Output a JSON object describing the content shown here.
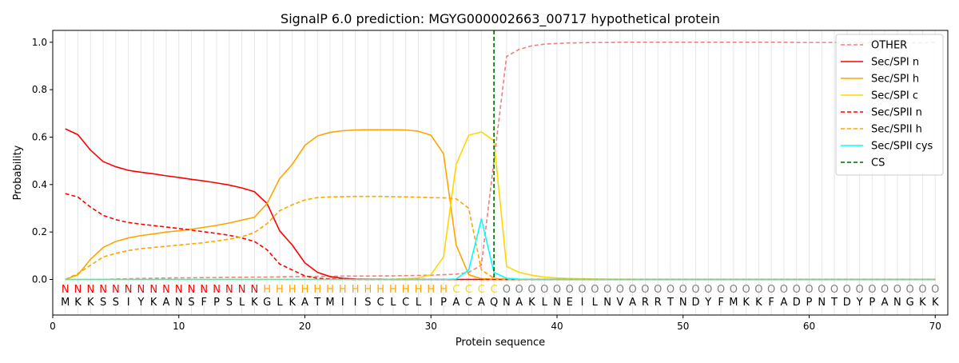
{
  "chart_data": {
    "type": "line",
    "title": "SignalP 6.0 prediction: MGYG000002663_00717 hypothetical protein",
    "xlabel": "Protein sequence",
    "ylabel": "Probability",
    "xlim": [
      0,
      71
    ],
    "ylim": [
      -0.15,
      1.05
    ],
    "x_ticks": [
      0,
      10,
      20,
      30,
      40,
      50,
      60,
      70
    ],
    "y_ticks": [
      0.0,
      0.2,
      0.4,
      0.6,
      0.8,
      1.0
    ],
    "y_tick_labels": [
      "0.0",
      "0.2",
      "0.4",
      "0.6",
      "0.8",
      "1.0"
    ],
    "grid": "vertical lines at each residue",
    "legend_position": "top-right",
    "sequence": [
      "M",
      "K",
      "K",
      "S",
      "S",
      "I",
      "Y",
      "K",
      "A",
      "N",
      "S",
      "F",
      "P",
      "S",
      "L",
      "K",
      "G",
      "L",
      "K",
      "A",
      "T",
      "M",
      "I",
      "I",
      "S",
      "C",
      "L",
      "C",
      "L",
      "I",
      "P",
      "A",
      "C",
      "A",
      "Q",
      "N",
      "A",
      "K",
      "L",
      "N",
      "E",
      "I",
      "L",
      "N",
      "V",
      "A",
      "R",
      "R",
      "T",
      "N",
      "D",
      "Y",
      "F",
      "M",
      "K",
      "K",
      "F",
      "A",
      "D",
      "P",
      "N",
      "T",
      "D",
      "Y",
      "P",
      "A",
      "N",
      "G",
      "K",
      "K"
    ],
    "region_labels": [
      "N",
      "N",
      "N",
      "N",
      "N",
      "N",
      "N",
      "N",
      "N",
      "N",
      "N",
      "N",
      "N",
      "N",
      "N",
      "N",
      "H",
      "H",
      "H",
      "H",
      "H",
      "H",
      "H",
      "H",
      "H",
      "H",
      "H",
      "H",
      "H",
      "H",
      "H",
      "C",
      "C",
      "C",
      "C",
      "O",
      "O",
      "O",
      "O",
      "O",
      "O",
      "O",
      "O",
      "O",
      "O",
      "O",
      "O",
      "O",
      "O",
      "O",
      "O",
      "O",
      "O",
      "O",
      "O",
      "O",
      "O",
      "O",
      "O",
      "O",
      "O",
      "O",
      "O",
      "O",
      "O",
      "O",
      "O",
      "O",
      "O",
      "O"
    ],
    "region_colors": {
      "N": "#ff0000",
      "H": "#ffa500",
      "C": "#ffd700",
      "O": "#808080"
    },
    "cs_position": 35,
    "cs_label": "CS",
    "cs_color": "#006400",
    "series": [
      {
        "name": "OTHER",
        "color": "#f08080",
        "dash": true,
        "values": [
          0.0,
          0.0,
          0.0,
          0.0,
          0.002,
          0.003,
          0.004,
          0.005,
          0.006,
          0.007,
          0.007,
          0.008,
          0.008,
          0.009,
          0.009,
          0.01,
          0.01,
          0.011,
          0.012,
          0.012,
          0.013,
          0.013,
          0.014,
          0.014,
          0.014,
          0.015,
          0.015,
          0.016,
          0.017,
          0.018,
          0.02,
          0.022,
          0.03,
          0.06,
          0.5,
          0.94,
          0.97,
          0.985,
          0.992,
          0.995,
          0.997,
          0.998,
          0.999,
          0.999,
          1.0,
          1.0,
          1.0,
          1.0,
          1.0,
          1.0,
          1.0,
          1.0,
          1.0,
          1.0,
          1.0,
          1.0,
          1.0,
          1.0,
          0.999,
          0.999,
          0.999,
          0.999,
          0.998,
          0.998,
          0.998,
          0.998,
          0.998,
          0.998,
          0.998,
          0.999
        ]
      },
      {
        "name": "Sec/SPI n",
        "color": "#ff0000",
        "dash": false,
        "values": [
          0.635,
          0.61,
          0.545,
          0.497,
          0.475,
          0.46,
          0.452,
          0.445,
          0.437,
          0.43,
          0.422,
          0.415,
          0.407,
          0.398,
          0.386,
          0.37,
          0.32,
          0.205,
          0.145,
          0.07,
          0.03,
          0.012,
          0.005,
          0.002,
          0.001,
          0.001,
          0.0,
          0.0,
          0.0,
          0.0,
          0.0,
          0.0,
          0.0,
          0.0,
          0.0,
          0.0,
          0.0,
          0.0,
          0.0,
          0.0,
          0.0,
          0.0,
          0.0,
          0.0,
          0.0,
          0.0,
          0.0,
          0.0,
          0.0,
          0.0,
          0.0,
          0.0,
          0.0,
          0.0,
          0.0,
          0.0,
          0.0,
          0.0,
          0.0,
          0.0,
          0.0,
          0.0,
          0.0,
          0.0,
          0.0,
          0.0,
          0.0,
          0.0,
          0.0,
          0.0
        ]
      },
      {
        "name": "Sec/SPI h",
        "color": "#ffa500",
        "dash": false,
        "values": [
          0.0,
          0.02,
          0.085,
          0.135,
          0.16,
          0.175,
          0.185,
          0.192,
          0.2,
          0.205,
          0.212,
          0.22,
          0.228,
          0.238,
          0.25,
          0.262,
          0.32,
          0.425,
          0.485,
          0.565,
          0.605,
          0.62,
          0.627,
          0.63,
          0.631,
          0.631,
          0.631,
          0.63,
          0.625,
          0.608,
          0.53,
          0.145,
          0.02,
          0.003,
          0.001,
          0.0,
          0.0,
          0.0,
          0.0,
          0.0,
          0.0,
          0.0,
          0.0,
          0.0,
          0.0,
          0.0,
          0.0,
          0.0,
          0.0,
          0.0,
          0.0,
          0.0,
          0.0,
          0.0,
          0.0,
          0.0,
          0.0,
          0.0,
          0.0,
          0.0,
          0.0,
          0.0,
          0.0,
          0.0,
          0.0,
          0.0,
          0.0,
          0.0,
          0.0,
          0.0
        ]
      },
      {
        "name": "Sec/SPI c",
        "color": "#ffd700",
        "dash": false,
        "values": [
          0.0,
          0.0,
          0.0,
          0.0,
          0.0,
          0.0,
          0.0,
          0.0,
          0.0,
          0.0,
          0.0,
          0.0,
          0.0,
          0.0,
          0.0,
          0.0,
          0.0,
          0.0,
          0.0,
          0.0,
          0.0,
          0.0,
          0.0,
          0.0,
          0.0,
          0.0,
          0.001,
          0.003,
          0.006,
          0.02,
          0.095,
          0.485,
          0.608,
          0.622,
          0.585,
          0.055,
          0.03,
          0.018,
          0.01,
          0.006,
          0.004,
          0.003,
          0.002,
          0.001,
          0.001,
          0.001,
          0.0,
          0.0,
          0.0,
          0.0,
          0.0,
          0.0,
          0.0,
          0.0,
          0.0,
          0.0,
          0.0,
          0.0,
          0.0,
          0.0,
          0.0,
          0.0,
          0.0,
          0.0,
          0.0,
          0.0,
          0.0,
          0.0,
          0.0,
          0.0
        ]
      },
      {
        "name": "Sec/SPII n",
        "color": "#ff0000",
        "dash": true,
        "values": [
          0.362,
          0.347,
          0.305,
          0.27,
          0.252,
          0.24,
          0.233,
          0.227,
          0.221,
          0.215,
          0.208,
          0.201,
          0.194,
          0.186,
          0.175,
          0.16,
          0.125,
          0.065,
          0.04,
          0.015,
          0.005,
          0.002,
          0.001,
          0.0,
          0.0,
          0.0,
          0.0,
          0.0,
          0.0,
          0.0,
          0.0,
          0.0,
          0.0,
          0.0,
          0.0,
          0.0,
          0.0,
          0.0,
          0.0,
          0.0,
          0.0,
          0.0,
          0.0,
          0.0,
          0.0,
          0.0,
          0.0,
          0.0,
          0.0,
          0.0,
          0.0,
          0.0,
          0.0,
          0.0,
          0.0,
          0.0,
          0.0,
          0.0,
          0.0,
          0.0,
          0.0,
          0.0,
          0.0,
          0.0,
          0.0,
          0.0,
          0.0,
          0.0,
          0.0,
          0.0
        ]
      },
      {
        "name": "Sec/SPII h",
        "color": "#ffa500",
        "dash": true,
        "values": [
          0.0,
          0.025,
          0.06,
          0.095,
          0.11,
          0.122,
          0.13,
          0.135,
          0.14,
          0.145,
          0.15,
          0.155,
          0.162,
          0.17,
          0.18,
          0.198,
          0.235,
          0.29,
          0.315,
          0.335,
          0.345,
          0.348,
          0.349,
          0.35,
          0.35,
          0.35,
          0.349,
          0.348,
          0.347,
          0.345,
          0.344,
          0.34,
          0.3,
          0.04,
          0.005,
          0.001,
          0.0,
          0.0,
          0.0,
          0.0,
          0.0,
          0.0,
          0.0,
          0.0,
          0.0,
          0.0,
          0.0,
          0.0,
          0.0,
          0.0,
          0.0,
          0.0,
          0.0,
          0.0,
          0.0,
          0.0,
          0.0,
          0.0,
          0.0,
          0.0,
          0.0,
          0.0,
          0.0,
          0.0,
          0.0,
          0.0,
          0.0,
          0.0,
          0.0,
          0.0
        ]
      },
      {
        "name": "Sec/SPII cys",
        "color": "#00ffff",
        "dash": false,
        "values": [
          0.0,
          0.0,
          0.0,
          0.0,
          0.0,
          0.0,
          0.0,
          0.0,
          0.0,
          0.0,
          0.0,
          0.0,
          0.0,
          0.0,
          0.0,
          0.0,
          0.0,
          0.0,
          0.0,
          0.0,
          0.0,
          0.0,
          0.0,
          0.0,
          0.0,
          0.0,
          0.0,
          0.0,
          0.0,
          0.0,
          0.0,
          0.002,
          0.04,
          0.255,
          0.03,
          0.005,
          0.001,
          0.0,
          0.0,
          0.0,
          0.0,
          0.0,
          0.0,
          0.0,
          0.0,
          0.0,
          0.0,
          0.0,
          0.0,
          0.0,
          0.0,
          0.0,
          0.0,
          0.0,
          0.0,
          0.0,
          0.0,
          0.0,
          0.0,
          0.0,
          0.0,
          0.0,
          0.0,
          0.0,
          0.0,
          0.0,
          0.0,
          0.0,
          0.0,
          0.0
        ]
      }
    ]
  }
}
